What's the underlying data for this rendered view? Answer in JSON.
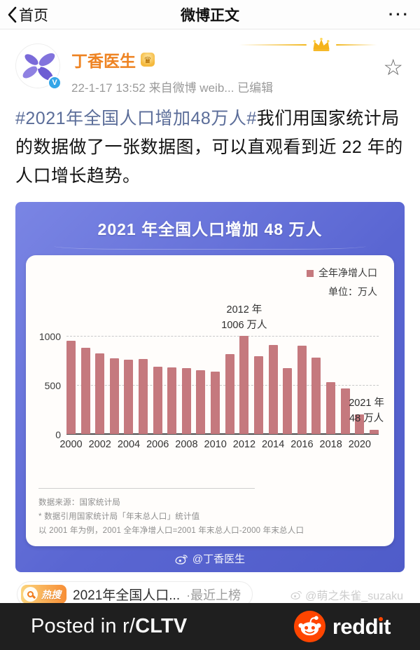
{
  "nav": {
    "back_label": "首页",
    "title": "微博正文",
    "menu_icon": "ellipsis-icon"
  },
  "post": {
    "author": {
      "name": "丁香医生",
      "vip_badge_glyph": "♛"
    },
    "meta": "22-1-17 13:52  来自微博 weib...  已编辑",
    "star_glyph": "☆",
    "text_hashtag": "#2021年全国人口增加48万人#",
    "text_body": "我们用国家统计局的数据做了一张数据图，可以直观看到近 22 年的人口增长趋势。"
  },
  "chart_data": {
    "type": "bar",
    "title": "2021 年全国人口增加 48 万人",
    "legend": "全年净增人口",
    "unit_label": "单位：万人",
    "bar_color": "#c5797e",
    "x": [
      2000,
      2001,
      2002,
      2003,
      2004,
      2005,
      2006,
      2007,
      2008,
      2009,
      2010,
      2011,
      2012,
      2013,
      2014,
      2015,
      2016,
      2017,
      2018,
      2019,
      2020,
      2021
    ],
    "values": [
      957,
      884,
      826,
      774,
      761,
      768,
      692,
      681,
      673,
      652,
      641,
      819,
      1006,
      794,
      910,
      672,
      906,
      779,
      530,
      467,
      204,
      48
    ],
    "x_tick_labels": [
      "2000",
      "2002",
      "2004",
      "2006",
      "2008",
      "2010",
      "2012",
      "2014",
      "2016",
      "2018",
      "2020"
    ],
    "y_ticks": [
      0,
      500,
      1000
    ],
    "ylim": [
      0,
      1050
    ],
    "grid": "dashed-horizontal",
    "legend_position": "top-right",
    "annotations": [
      {
        "line1": "2012 年",
        "line2": "1006 万人",
        "bar_index": 12,
        "position": "above-bar"
      },
      {
        "line1": "2021 年",
        "line2": "48 万人",
        "bar_index": 21,
        "position": "right-bottom"
      }
    ],
    "source_line1": "数据来源：国家统计局",
    "source_line2": "* 数据引用国家统计局「年末总人口」统计值",
    "source_line3": "以 2001 年为例，2001 全年净增人口=2001 年末总人口-2000 年末总人口",
    "watermark": "@丁香医生"
  },
  "hot_search": {
    "badge": "热搜",
    "text": "2021年全国人口...",
    "suffix": "·最近上榜"
  },
  "user_watermark": "@萌之朱雀_suzaku",
  "footer": {
    "posted_prefix": "Posted in r/",
    "community": "CLTV",
    "brand": "reddit"
  }
}
